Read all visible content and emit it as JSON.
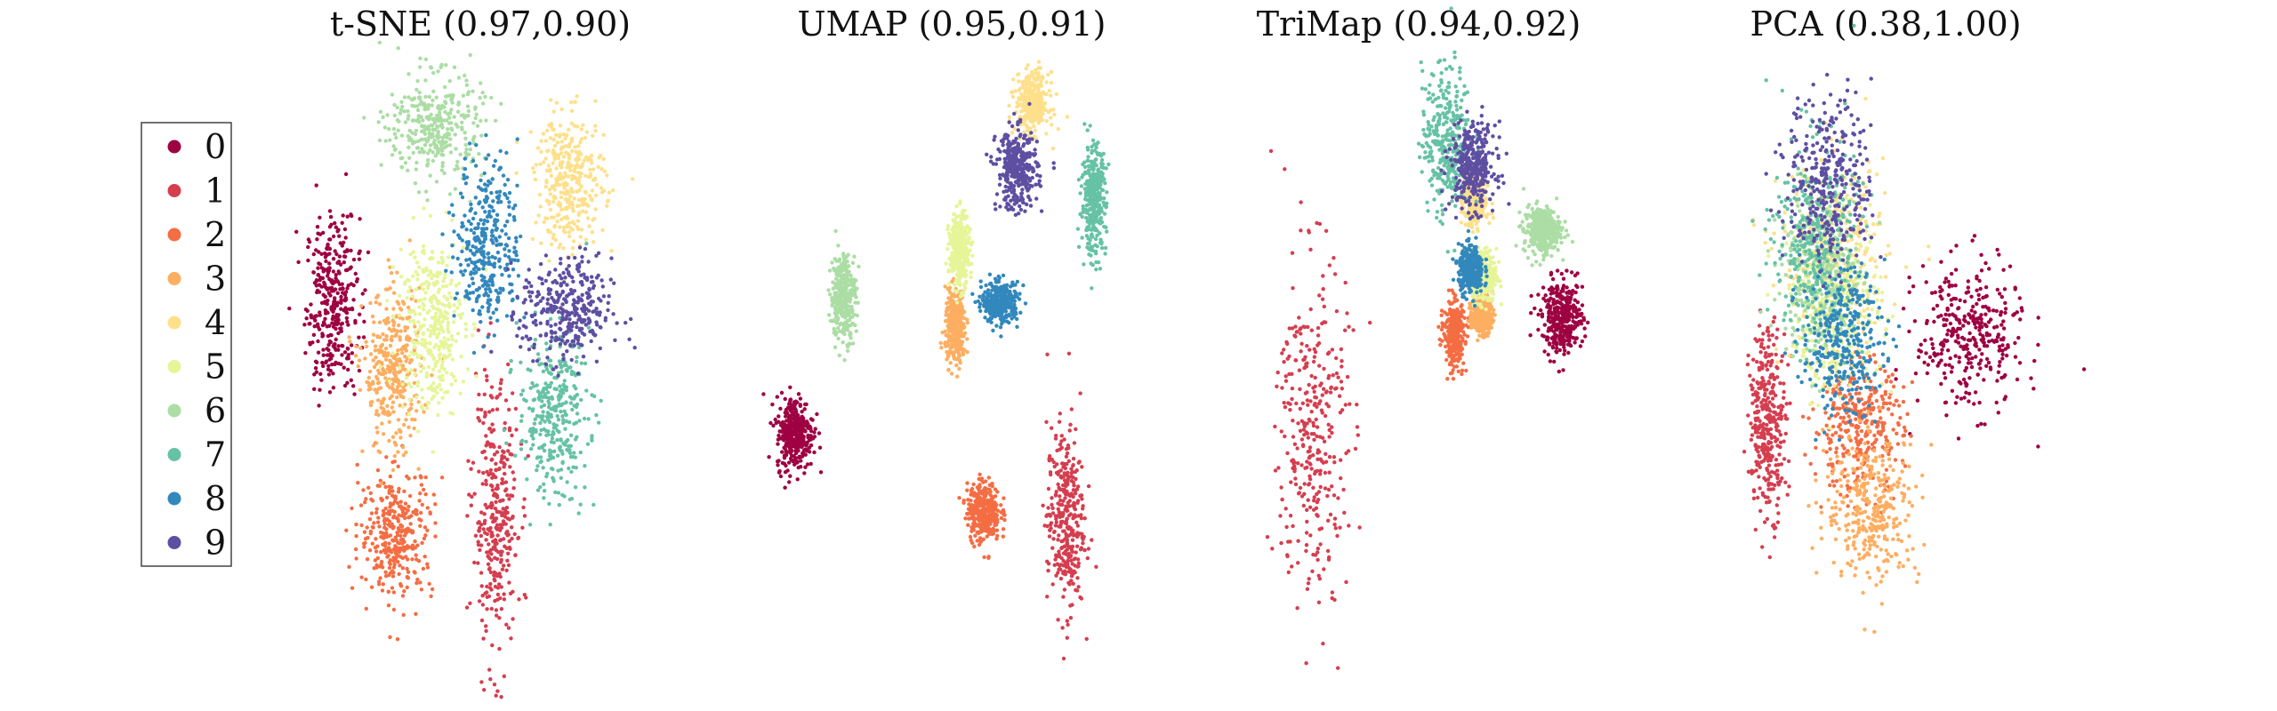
{
  "chart_data": [
    {
      "type": "scatter",
      "title": "t-SNE (0.97,0.90)",
      "xlabel": "",
      "ylabel": "",
      "grid": false,
      "axes_visible": false,
      "legend": "none",
      "xlim": [
        -10,
        10
      ],
      "ylim": [
        -10,
        10
      ],
      "clusters": [
        {
          "label": "0",
          "center": [
            -7.9,
            1.6
          ],
          "spread": [
            1.3,
            2.6
          ]
        },
        {
          "label": "1",
          "center": [
            0.8,
            -5.6
          ],
          "spread": [
            1.1,
            4.0
          ]
        },
        {
          "label": "2",
          "center": [
            -4.5,
            -6.0
          ],
          "spread": [
            1.8,
            1.9
          ]
        },
        {
          "label": "3",
          "center": [
            -4.7,
            -0.7
          ],
          "spread": [
            1.4,
            2.4
          ]
        },
        {
          "label": "4",
          "center": [
            4.8,
            5.6
          ],
          "spread": [
            1.7,
            2.0
          ]
        },
        {
          "label": "5",
          "center": [
            -2.6,
            0.9
          ],
          "spread": [
            1.6,
            2.7
          ]
        },
        {
          "label": "6",
          "center": [
            -2.4,
            7.4
          ],
          "spread": [
            2.3,
            1.6
          ]
        },
        {
          "label": "7",
          "center": [
            3.9,
            -2.1
          ],
          "spread": [
            1.7,
            2.4
          ]
        },
        {
          "label": "8",
          "center": [
            0.4,
            3.6
          ],
          "spread": [
            1.5,
            2.6
          ]
        },
        {
          "label": "9",
          "center": [
            4.6,
            1.3
          ],
          "spread": [
            2.2,
            1.6
          ]
        }
      ]
    },
    {
      "type": "scatter",
      "title": "UMAP (0.95,0.91)",
      "xlabel": "",
      "ylabel": "",
      "grid": false,
      "axes_visible": false,
      "legend": "none",
      "xlim": [
        -10,
        10
      ],
      "ylim": [
        -10,
        10
      ],
      "clusters": [
        {
          "label": "0",
          "center": [
            -8.4,
            -2.7
          ],
          "spread": [
            0.9,
            1.1
          ]
        },
        {
          "label": "1",
          "center": [
            6.1,
            -5.6
          ],
          "spread": [
            0.9,
            2.8
          ]
        },
        {
          "label": "2",
          "center": [
            1.7,
            -5.3
          ],
          "spread": [
            0.8,
            0.9
          ]
        },
        {
          "label": "3",
          "center": [
            0.2,
            0.8
          ],
          "spread": [
            0.5,
            1.1
          ]
        },
        {
          "label": "4",
          "center": [
            4.3,
            8.2
          ],
          "spread": [
            0.8,
            0.9
          ]
        },
        {
          "label": "5",
          "center": [
            0.4,
            3.3
          ],
          "spread": [
            0.5,
            1.1
          ]
        },
        {
          "label": "6",
          "center": [
            -5.8,
            1.8
          ],
          "spread": [
            0.6,
            1.3
          ]
        },
        {
          "label": "7",
          "center": [
            7.6,
            5.0
          ],
          "spread": [
            0.6,
            1.6
          ]
        },
        {
          "label": "8",
          "center": [
            2.6,
            1.6
          ],
          "spread": [
            0.9,
            0.6
          ]
        },
        {
          "label": "9",
          "center": [
            3.5,
            6.0
          ],
          "spread": [
            1.0,
            1.2
          ]
        }
      ]
    },
    {
      "type": "scatter",
      "title": "TriMap (0.94,0.92)",
      "xlabel": "",
      "ylabel": "",
      "grid": false,
      "axes_visible": false,
      "legend": "none",
      "xlim": [
        -10,
        10
      ],
      "ylim": [
        -10,
        10
      ],
      "clusters": [
        {
          "label": "0",
          "center": [
            7.7,
            1.1
          ],
          "spread": [
            1.0,
            1.1
          ]
        },
        {
          "label": "1",
          "center": [
            -5.7,
            -2.5
          ],
          "spread": [
            1.7,
            5.2
          ]
        },
        {
          "label": "2",
          "center": [
            1.9,
            0.6
          ],
          "spread": [
            0.5,
            1.0
          ]
        },
        {
          "label": "3",
          "center": [
            3.4,
            1.2
          ],
          "spread": [
            0.5,
            0.6
          ]
        },
        {
          "label": "4",
          "center": [
            3.0,
            5.0
          ],
          "spread": [
            0.6,
            0.8
          ]
        },
        {
          "label": "5",
          "center": [
            3.5,
            2.5
          ],
          "spread": [
            0.6,
            0.8
          ]
        },
        {
          "label": "6",
          "center": [
            6.6,
            4.0
          ],
          "spread": [
            0.9,
            0.7
          ]
        },
        {
          "label": "7",
          "center": [
            1.5,
            7.0
          ],
          "spread": [
            1.2,
            2.2
          ]
        },
        {
          "label": "8",
          "center": [
            2.8,
            2.7
          ],
          "spread": [
            0.6,
            0.7
          ]
        },
        {
          "label": "9",
          "center": [
            2.9,
            6.1
          ],
          "spread": [
            1.1,
            1.3
          ]
        }
      ]
    },
    {
      "type": "scatter",
      "title": "PCA (0.38,1.00)",
      "xlabel": "",
      "ylabel": "",
      "grid": false,
      "axes_visible": false,
      "legend": "none",
      "xlim": [
        -10,
        10
      ],
      "ylim": [
        -10,
        10
      ],
      "clusters": [
        {
          "label": "0",
          "center": [
            4.5,
            0.5
          ],
          "spread": [
            2.6,
            2.2
          ]
        },
        {
          "label": "1",
          "center": [
            -6.3,
            -2.3
          ],
          "spread": [
            0.9,
            2.8
          ]
        },
        {
          "label": "2",
          "center": [
            -1.5,
            -2.5
          ],
          "spread": [
            2.2,
            2.0
          ]
        },
        {
          "label": "3",
          "center": [
            -0.7,
            -5.2
          ],
          "spread": [
            2.3,
            2.2
          ]
        },
        {
          "label": "4",
          "center": [
            -2.8,
            2.9
          ],
          "spread": [
            2.6,
            3.0
          ]
        },
        {
          "label": "5",
          "center": [
            -2.6,
            1.5
          ],
          "spread": [
            2.2,
            2.5
          ]
        },
        {
          "label": "6",
          "center": [
            -3.6,
            2.6
          ],
          "spread": [
            1.8,
            2.5
          ]
        },
        {
          "label": "7",
          "center": [
            -3.8,
            3.7
          ],
          "spread": [
            2.0,
            3.0
          ]
        },
        {
          "label": "8",
          "center": [
            -2.3,
            0.4
          ],
          "spread": [
            2.0,
            2.2
          ]
        },
        {
          "label": "9",
          "center": [
            -3.0,
            5.6
          ],
          "spread": [
            2.1,
            2.6
          ]
        }
      ]
    }
  ],
  "legend": {
    "placement": "left",
    "entries": [
      {
        "label": "0",
        "color": "#9e0142"
      },
      {
        "label": "1",
        "color": "#d53e4f"
      },
      {
        "label": "2",
        "color": "#f46d43"
      },
      {
        "label": "3",
        "color": "#fdae61"
      },
      {
        "label": "4",
        "color": "#fee08b"
      },
      {
        "label": "5",
        "color": "#e6f598"
      },
      {
        "label": "6",
        "color": "#abdda4"
      },
      {
        "label": "7",
        "color": "#66c2a5"
      },
      {
        "label": "8",
        "color": "#3288bd"
      },
      {
        "label": "9",
        "color": "#5e4fa2"
      }
    ]
  }
}
